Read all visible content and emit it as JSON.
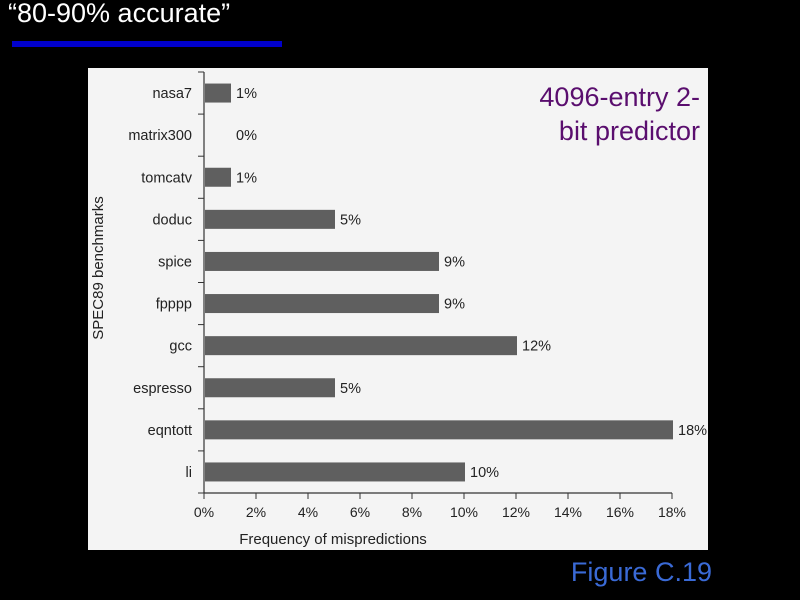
{
  "slide": {
    "title": "“80-90% accurate”",
    "annotation_line1": "4096-entry 2-",
    "annotation_line2": "bit predictor",
    "caption": "Figure C.19",
    "colors": {
      "title": "#ffffff",
      "underline": "#0000cc",
      "annotation": "#5a0e6e",
      "caption": "#3a6ad6",
      "bar": "#5f5f5f"
    }
  },
  "chart_data": {
    "type": "bar",
    "orientation": "horizontal",
    "categories": [
      "nasa7",
      "matrix300",
      "tomcatv",
      "doduc",
      "spice",
      "fpppp",
      "gcc",
      "espresso",
      "eqntott",
      "li"
    ],
    "values": [
      1,
      0,
      1,
      5,
      9,
      9,
      12,
      5,
      18,
      10
    ],
    "data_labels": [
      "1%",
      "0%",
      "1%",
      "5%",
      "9%",
      "9%",
      "12%",
      "5%",
      "18%",
      "10%"
    ],
    "xlabel": "Frequency of mispredictions",
    "ylabel": "SPEC89 benchmarks",
    "xlim": [
      0,
      18
    ],
    "x_ticks": [
      0,
      2,
      4,
      6,
      8,
      10,
      12,
      14,
      16,
      18
    ],
    "x_tick_labels": [
      "0%",
      "2%",
      "4%",
      "6%",
      "8%",
      "10%",
      "12%",
      "14%",
      "16%",
      "18%"
    ],
    "grid": false
  }
}
